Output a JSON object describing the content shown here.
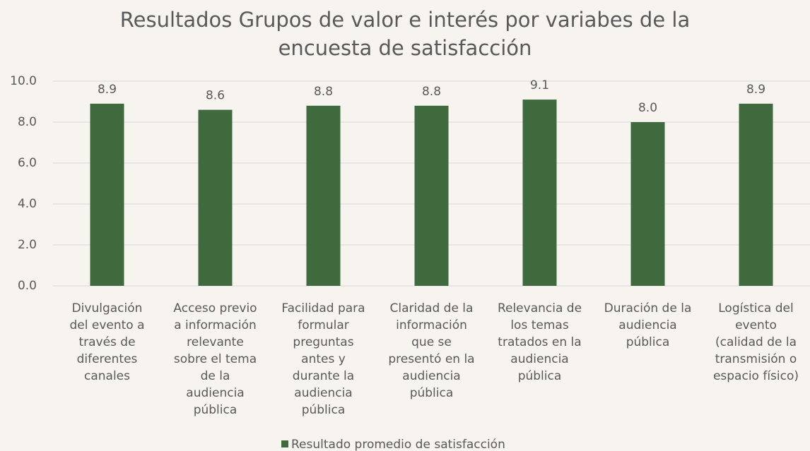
{
  "chart_data": {
    "type": "bar",
    "title": [
      "Resultados Grupos de valor e interés por variabes de la",
      "encuesta de satisfacción"
    ],
    "categories": [
      [
        "Divulgación",
        "del evento a",
        "través de",
        "diferentes",
        "canales"
      ],
      [
        "Acceso previo",
        "a información",
        "relevante",
        "sobre el tema",
        "de la",
        "audiencia",
        "pública"
      ],
      [
        "Facilidad para",
        "formular",
        "preguntas",
        "antes y",
        "durante la",
        "audiencia",
        "pública"
      ],
      [
        "Claridad de la",
        "información",
        "que se",
        "presentó en la",
        "audiencia",
        "pública"
      ],
      [
        "Relevancia de",
        "los temas",
        "tratados en la",
        "audiencia",
        "pública"
      ],
      [
        "Duración de la",
        "audiencia",
        "pública"
      ],
      [
        "Logística del",
        "evento",
        "(calidad de la",
        "transmisión o",
        "espacio físico)"
      ]
    ],
    "series": [
      {
        "name": "Resultado promedio de satisfacción",
        "color": "#3e6a3d",
        "values": [
          8.9,
          8.6,
          8.8,
          8.8,
          9.1,
          8.0,
          8.9
        ],
        "value_labels": [
          "8.9",
          "8.6",
          "8.8",
          "8.8",
          "9.1",
          "8.0",
          "8.9"
        ]
      }
    ],
    "ylim": [
      0,
      10
    ],
    "yticks": [
      {
        "value": 0,
        "label": "0.0"
      },
      {
        "value": 2,
        "label": "2.0"
      },
      {
        "value": 4,
        "label": "4.0"
      },
      {
        "value": 6,
        "label": "6.0"
      },
      {
        "value": 8,
        "label": "8.0"
      },
      {
        "value": 10,
        "label": "10.0"
      }
    ],
    "grid": true,
    "legend": "bottom"
  }
}
